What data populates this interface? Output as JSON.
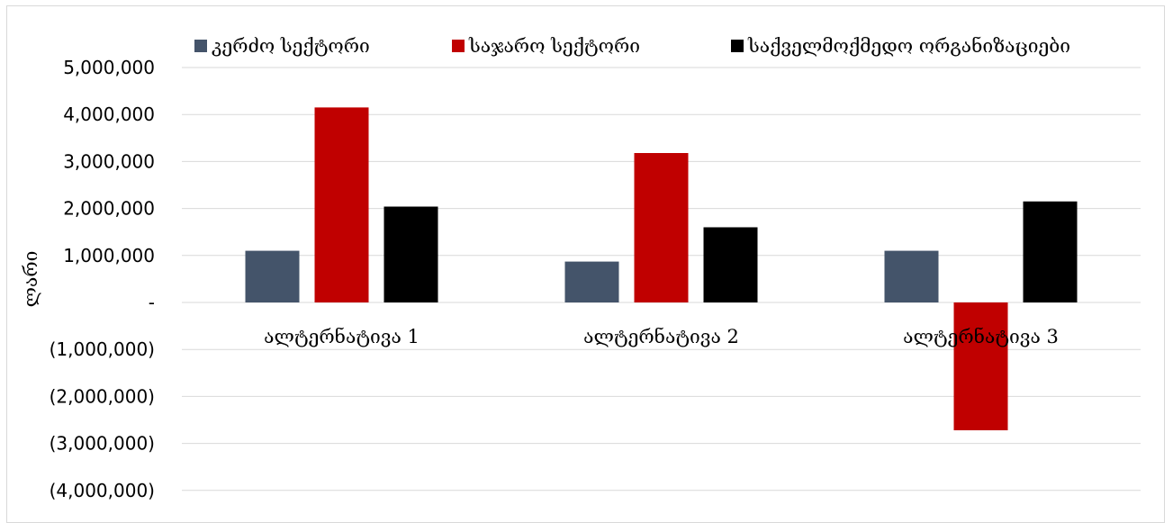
{
  "chart_data": {
    "type": "bar",
    "categories": [
      "ალტერნატივა 1",
      "ალტერნატივა 2",
      "ალტერნატივა 3"
    ],
    "series": [
      {
        "name": "კერძო სექტორი",
        "color": "#44546a",
        "values": [
          1100000,
          870000,
          1100000
        ]
      },
      {
        "name": "საჯარო სექტორი",
        "color": "#c00000",
        "values": [
          4150000,
          3180000,
          -2720000
        ]
      },
      {
        "name": "საქველმოქმედო ორგანიზაციები",
        "color": "#000000",
        "values": [
          2040000,
          1600000,
          2150000
        ]
      }
    ],
    "ylabel": "ლარი",
    "xlabel": "",
    "ylim": [
      -4000000,
      5000000
    ],
    "ytick_values": [
      5000000,
      4000000,
      3000000,
      2000000,
      1000000,
      0,
      -1000000,
      -2000000,
      -3000000,
      -4000000
    ],
    "ytick_labels": [
      "5,000,000",
      "4,000,000",
      "3,000,000",
      "2,000,000",
      "1,000,000",
      "-",
      "(1,000,000)",
      "(2,000,000)",
      "(3,000,000)",
      "(4,000,000)"
    ],
    "grid": true,
    "legend_position": "top"
  }
}
